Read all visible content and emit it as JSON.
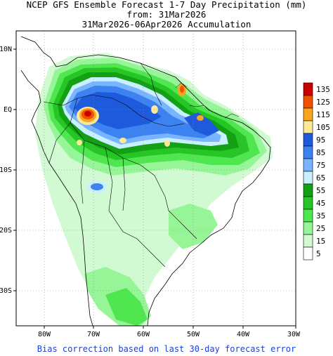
{
  "header": {
    "title_line1": "NCEP GFS Ensemble Forecast 1-7 Day Precipitation (mm)",
    "title_line2": "from: 31Mar2026",
    "title_line3": "31Mar2026-06Apr2026 Accumulation"
  },
  "map": {
    "lat_labels": [
      "10N",
      "EQ",
      "10S",
      "20S",
      "30S"
    ],
    "lon_labels": [
      "80W",
      "70W",
      "60W",
      "50W",
      "40W",
      "30W"
    ],
    "colors": {
      "land_outline": "#000000",
      "grid": "#888888"
    }
  },
  "legend": {
    "levels": [
      {
        "label": "135",
        "color": "#c80000"
      },
      {
        "label": "125",
        "color": "#f05000"
      },
      {
        "label": "115",
        "color": "#faa51e"
      },
      {
        "label": "105",
        "color": "#fde893"
      },
      {
        "label": "95",
        "color": "#1e5adc"
      },
      {
        "label": "85",
        "color": "#3c82f0"
      },
      {
        "label": "75",
        "color": "#78b4ff"
      },
      {
        "label": "65",
        "color": "#c8f0ff"
      },
      {
        "label": "55",
        "color": "#14a014"
      },
      {
        "label": "45",
        "color": "#26c626"
      },
      {
        "label": "35",
        "color": "#50e650"
      },
      {
        "label": "25",
        "color": "#96f596"
      },
      {
        "label": "15",
        "color": "#d2fad2"
      },
      {
        "label": "5",
        "color": "#ffffff"
      }
    ]
  },
  "footer": {
    "text": "Bias correction based on last 30-day forecast error"
  }
}
